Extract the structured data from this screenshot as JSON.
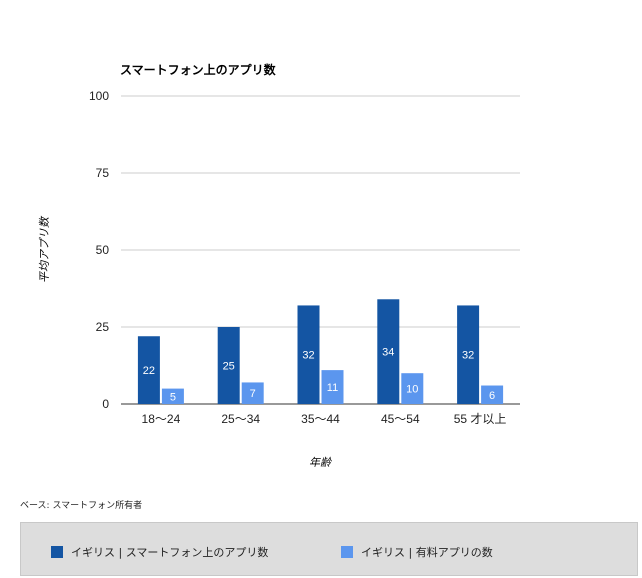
{
  "chart_data": {
    "type": "bar",
    "title": "スマートフォン上のアプリ数",
    "xlabel": "年齢",
    "ylabel": "平均アプリ数",
    "ylim": [
      0,
      100
    ],
    "yticks": [
      0,
      25,
      50,
      75,
      100
    ],
    "grid": true,
    "legend_position": "bottom",
    "categories": [
      "18〜24",
      "25〜34",
      "35〜44",
      "45〜54",
      "55 才以上"
    ],
    "series": [
      {
        "name": "イギリス | スマートフォン上のアプリ数",
        "color": "#1455a3",
        "values": [
          22,
          25,
          32,
          34,
          32
        ],
        "labels": [
          "22",
          "25",
          "32",
          "34",
          "32"
        ]
      },
      {
        "name": "イギリス | 有料アプリの数",
        "color": "#5b96ee",
        "values": [
          5,
          7,
          11,
          10,
          6
        ],
        "labels": [
          "5",
          "7",
          "11",
          "10",
          "6"
        ]
      }
    ]
  },
  "note": "ベース: スマートフォン所有者"
}
